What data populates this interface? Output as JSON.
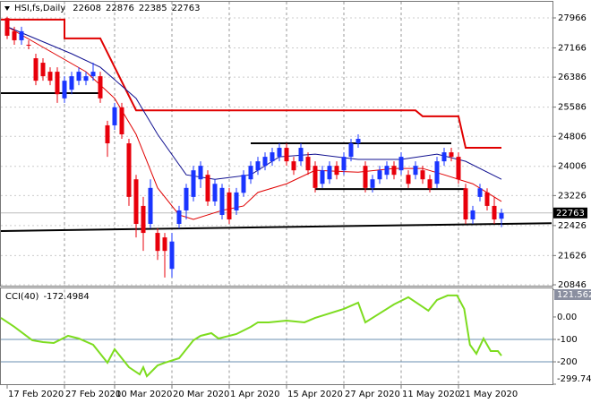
{
  "symbol": "HSI,fs,Daily",
  "chart_data": [
    {
      "type": "candlestick",
      "categories": [
        "17 Feb 2020",
        null,
        null,
        null,
        null,
        null,
        null,
        null,
        "27 Feb 2020",
        null,
        null,
        null,
        null,
        null,
        null,
        "10 Mar 2020",
        null,
        null,
        null,
        null,
        null,
        null,
        null,
        "20 Mar 2020",
        null,
        null,
        null,
        null,
        null,
        null,
        null,
        "1 Apr 2020",
        null,
        null,
        null,
        null,
        null,
        null,
        null,
        "15 Apr 2020",
        null,
        null,
        null,
        null,
        null,
        null,
        null,
        "27 Apr 2020",
        null,
        null,
        null,
        null,
        null,
        null,
        null,
        "11 May 2020",
        null,
        null,
        null,
        null,
        null,
        null,
        null,
        "21 May 2020",
        null,
        null,
        null,
        null,
        null,
        null
      ],
      "open": [
        27960,
        27610,
        27370,
        27250,
        26890,
        26770,
        26530,
        26530,
        25820,
        26050,
        26290,
        26290,
        26410,
        26410,
        25100,
        25100,
        25580,
        24620,
        23660,
        22950,
        22470,
        22230,
        22110,
        21270,
        22470,
        22830,
        23190,
        23660,
        23780,
        23070,
        22710,
        23310,
        22830,
        23300,
        23660,
        23900,
        24020,
        24140,
        24260,
        24500,
        24140,
        24140,
        24260,
        24020,
        23540,
        23660,
        24020,
        23900,
        24260,
        24620,
        24020,
        23430,
        23660,
        23780,
        24020,
        23900,
        23780,
        23780,
        23900,
        23660,
        23540,
        24140,
        24380,
        24260,
        23420,
        22590,
        23190,
        23310,
        22950,
        22608
      ],
      "high": [
        28000,
        27730,
        27730,
        27370,
        27010,
        26890,
        26650,
        26650,
        26410,
        26530,
        26650,
        26530,
        26770,
        26530,
        25220,
        25700,
        25700,
        24740,
        23780,
        23190,
        23660,
        22350,
        22230,
        22230,
        22950,
        23540,
        24020,
        24140,
        23900,
        23660,
        23540,
        23430,
        23430,
        23900,
        24140,
        24260,
        24380,
        24500,
        24620,
        24620,
        24260,
        24620,
        24380,
        24140,
        24020,
        24140,
        24140,
        24380,
        24740,
        24860,
        24140,
        23780,
        24020,
        24140,
        24140,
        24380,
        23900,
        24140,
        24020,
        23780,
        24260,
        24500,
        24500,
        24380,
        23540,
        22950,
        23540,
        23420,
        23190,
        22876
      ],
      "low": [
        27400,
        27250,
        27250,
        27130,
        26170,
        26290,
        26170,
        25700,
        25700,
        25930,
        26170,
        26170,
        26290,
        25700,
        24260,
        24980,
        24740,
        22950,
        22110,
        21750,
        22350,
        21510,
        21040,
        21040,
        22350,
        22590,
        23070,
        23430,
        22950,
        22950,
        22590,
        22470,
        22710,
        23190,
        23540,
        23780,
        23900,
        24020,
        24140,
        24020,
        23780,
        24020,
        23780,
        23310,
        23430,
        23540,
        23660,
        23780,
        24140,
        24500,
        23310,
        23310,
        23540,
        23660,
        23660,
        23780,
        23430,
        23660,
        23540,
        23310,
        23430,
        24020,
        24140,
        23540,
        22470,
        22470,
        23070,
        22830,
        22470,
        22385
      ],
      "close": [
        27490,
        27370,
        27610,
        27240,
        26290,
        26410,
        26290,
        25930,
        26290,
        26410,
        26530,
        26410,
        26530,
        25820,
        24620,
        25580,
        24860,
        23190,
        22470,
        22230,
        23430,
        21750,
        21750,
        22000,
        22830,
        23430,
        23900,
        24020,
        23070,
        23540,
        23430,
        22590,
        23310,
        23780,
        24020,
        24140,
        24260,
        24380,
        24500,
        24140,
        23900,
        24500,
        23900,
        23430,
        23900,
        24020,
        23780,
        24260,
        24620,
        24740,
        23430,
        23660,
        23900,
        24020,
        23780,
        24260,
        23540,
        24020,
        23660,
        23420,
        24140,
        24380,
        24260,
        23660,
        22590,
        22830,
        23420,
        22950,
        22590,
        22763
      ],
      "up_color": "#1a35ff",
      "down_color": "#e8000b",
      "ylim": [
        20822,
        28396
      ],
      "yticks": [
        27966,
        27166,
        26386,
        25586,
        24806,
        24006,
        23226,
        22426,
        21626,
        20846
      ],
      "last_price": 22763,
      "overlays": [
        {
          "color": "#e00000",
          "width": 2,
          "x": [
            -1,
            8,
            8,
            13,
            18,
            57,
            58,
            63,
            64,
            69
          ],
          "values": [
            27920,
            27920,
            27420,
            27420,
            25500,
            25500,
            25340,
            25340,
            24500,
            24500
          ]
        },
        {
          "color": "#e00000",
          "width": 1,
          "x": [
            0,
            11,
            15,
            18,
            21,
            24,
            26,
            30,
            33,
            35,
            39,
            43,
            49,
            54,
            58,
            61,
            65,
            69
          ],
          "values": [
            27730,
            26530,
            25820,
            24860,
            23430,
            22710,
            22590,
            22830,
            22950,
            23310,
            23540,
            23900,
            23850,
            23950,
            23950,
            23780,
            23540,
            23070
          ]
        },
        {
          "color": "#101090",
          "width": 1,
          "x": [
            0,
            9,
            13,
            18,
            21,
            25,
            29,
            34,
            38,
            43,
            49,
            55,
            60,
            64,
            69
          ],
          "values": [
            27730,
            27010,
            26650,
            25820,
            24860,
            23780,
            23660,
            23780,
            24260,
            24330,
            24190,
            24190,
            24330,
            24140,
            23660
          ]
        },
        {
          "color": "#000000",
          "width": 2,
          "x": [
            -1,
            13
          ],
          "values": [
            25960,
            25960
          ]
        },
        {
          "color": "#000000",
          "width": 2,
          "x": [
            34,
            62
          ],
          "values": [
            24620,
            24620
          ]
        },
        {
          "color": "#000000",
          "width": 2,
          "x": [
            43,
            64
          ],
          "values": [
            23400,
            23400
          ]
        },
        {
          "color": "#000000",
          "width": 2,
          "x": [
            -1,
            76
          ],
          "values": [
            22280,
            22490
          ]
        }
      ]
    },
    {
      "type": "line",
      "name": "CCI(40)",
      "color": "#7ddc1f",
      "x": [
        -1,
        1,
        3.5,
        5,
        6.5,
        8.5,
        10,
        12,
        13.5,
        14,
        15,
        17,
        18.5,
        19,
        19.5,
        21,
        22,
        24,
        26,
        27,
        28.5,
        29.5,
        31,
        32,
        34,
        35,
        36.5,
        39,
        41.5,
        43,
        45,
        47,
        49,
        50,
        52,
        54,
        56,
        57.5,
        58.8,
        60,
        61.5,
        62.8,
        63.8,
        64.6,
        65.5,
        66.5,
        67.5,
        68.5,
        69
      ],
      "values": [
        -4,
        -44,
        -104,
        -112,
        -116,
        -84,
        -96,
        -124,
        -184,
        -204,
        -144,
        -224,
        -256,
        -224,
        -264,
        -216,
        -204,
        -184,
        -104,
        -84,
        -72,
        -96,
        -84,
        -76,
        -44,
        -24,
        -24,
        -16,
        -24,
        -4,
        16,
        36,
        64,
        -24,
        16,
        56,
        88,
        56,
        28,
        76,
        96,
        96,
        36,
        -124,
        -164,
        -96,
        -152,
        -152,
        -172.4984
      ],
      "ylim": [
        -299.7474,
        121.5627
      ],
      "yticks": [
        121.5627,
        {
          "value": 0,
          "label": "0.00"
        },
        -100,
        -200,
        -299.7474
      ],
      "levels": [
        -100,
        -200
      ],
      "level_color": "#6a8fb0"
    }
  ]
}
